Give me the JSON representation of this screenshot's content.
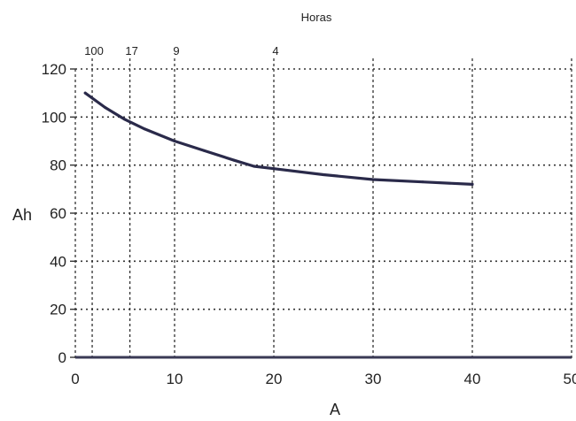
{
  "chart_data": {
    "type": "line",
    "xlabel": "A",
    "ylabel": "Ah",
    "top_axis_label": "Horas",
    "xlim": [
      0,
      50
    ],
    "ylim": [
      0,
      120
    ],
    "x_ticks": [
      0,
      10,
      20,
      30,
      40,
      50
    ],
    "y_ticks": [
      0,
      20,
      40,
      60,
      80,
      100,
      120
    ],
    "top_ticks": [
      {
        "x": 1.7,
        "label": "100"
      },
      {
        "x": 5.5,
        "label": "17"
      },
      {
        "x": 10,
        "label": "9"
      },
      {
        "x": 20,
        "label": "4"
      }
    ],
    "grid": true,
    "series": [
      {
        "x": [
          1,
          3,
          5,
          7,
          10,
          13,
          16,
          18,
          20,
          25,
          30,
          35,
          40
        ],
        "y": [
          110,
          104,
          99,
          95,
          90,
          86,
          82,
          79.5,
          78.5,
          76,
          74,
          73,
          72
        ]
      }
    ],
    "colors": {
      "curve": "#2a2a4a",
      "grid": "#333333",
      "baseline": "#3a3a55"
    }
  }
}
